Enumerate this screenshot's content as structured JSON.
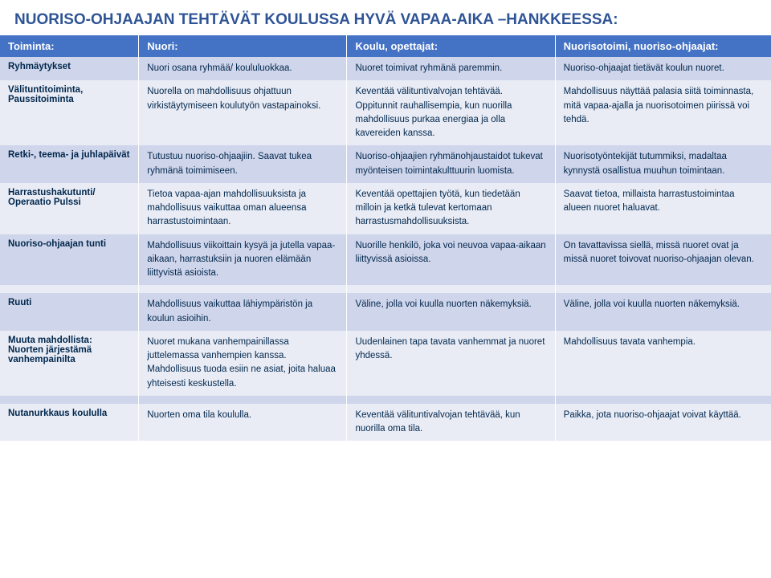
{
  "title": "NUORISO-OHJAAJAN TEHTÄVÄT KOULUSSA HYVÄ VAPAA-AIKA –HANKKEESSA:",
  "headers": {
    "c1": "Toiminta:",
    "c2": "Nuori:",
    "c3": "Koulu, opettajat:",
    "c4": "Nuorisotoimi, nuoriso-ohjaajat:"
  },
  "rows": [
    {
      "band": "a",
      "c1": "Ryhmäytykset",
      "c2": "Nuori osana ryhmää/ koululuokkaa.",
      "c3": "Nuoret toimivat ryhmänä paremmin.",
      "c4": "Nuoriso-ohjaajat tietävät koulun nuoret."
    },
    {
      "band": "b",
      "c1": "Välituntitoiminta, Paussitoiminta",
      "c2": "Nuorella on mahdollisuus ohjattuun virkistäytymiseen koulutyön vastapainoksi.",
      "c3": "Keventää välituntivalvojan tehtävää. Oppitunnit rauhallisempia, kun nuorilla mahdollisuus purkaa energiaa ja olla kavereiden kanssa.",
      "c4": "Mahdollisuus näyttää palasia siitä toiminnasta, mitä vapaa-ajalla ja nuorisotoimen piirissä voi tehdä."
    },
    {
      "band": "a",
      "c1": "Retki-, teema- ja juhlapäivät",
      "c2": "Tutustuu nuoriso-ohjaajiin. Saavat tukea ryhmänä toimimiseen.",
      "c3": "Nuoriso-ohjaajien ryhmänohjaustaidot tukevat myönteisen toimintakulttuurin luomista.",
      "c4": "Nuorisotyöntekijät tutummiksi, madaltaa kynnystä osallistua muuhun toimintaan."
    },
    {
      "band": "b",
      "c1": "Harrastushakutunti/ Operaatio Pulssi",
      "c2": "Tietoa vapaa-ajan mahdollisuuksista ja mahdollisuus vaikuttaa oman alueensa harrastustoimintaan.",
      "c3": "Keventää opettajien työtä, kun tiedetään milloin ja ketkä tulevat kertomaan harrastusmahdollisuuksista.",
      "c4": "Saavat tietoa, millaista harrastustoimintaa alueen nuoret haluavat."
    },
    {
      "band": "a",
      "c1": "Nuoriso-ohjaajan tunti",
      "c2": "Mahdollisuus viikoittain kysyä ja jutella vapaa-aikaan, harrastuksiin ja nuoren elämään liittyvistä asioista.",
      "c3": "Nuorille henkilö, joka voi neuvoa vapaa-aikaan liittyvissä asioissa.",
      "c4": "On tavattavissa siellä, missä nuoret ovat ja missä nuoret toivovat nuoriso-ohjaajan olevan."
    },
    {
      "band": "b",
      "spacer": true
    },
    {
      "band": "a",
      "c1": "Ruuti",
      "c2": "Mahdollisuus vaikuttaa lähiympäristön ja  koulun asioihin.",
      "c3": "Väline, jolla voi kuulla nuorten näkemyksiä.",
      "c4": "Väline, jolla voi kuulla nuorten näkemyksiä."
    },
    {
      "band": "b",
      "c1": "Muuta mahdollista:\n  Nuorten järjestämä vanhempainilta",
      "c2": "Nuoret mukana vanhempainillassa juttelemassa vanhempien kanssa. Mahdollisuus tuoda esiin ne asiat, joita haluaa yhteisesti keskustella.",
      "c3": "Uudenlainen tapa tavata vanhemmat ja nuoret yhdessä.",
      "c4": "Mahdollisuus tavata vanhempia."
    },
    {
      "band": "a",
      "spacer": true
    },
    {
      "band": "b",
      "c1": "Nutanurkkaus koululla",
      "c2": "Nuorten oma tila koululla.",
      "c3": "Keventää välituntivalvojan tehtävää, kun nuorilla oma tila.",
      "c4": "Paikka, jota nuoriso-ohjaajat voivat käyttää."
    }
  ]
}
